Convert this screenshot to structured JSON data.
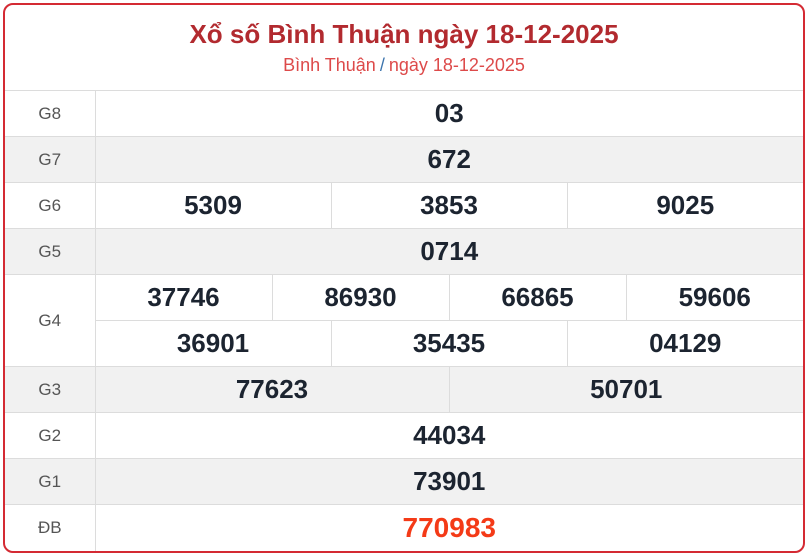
{
  "header": {
    "title": "Xổ số Bình Thuận ngày 18-12-2025",
    "breadcrumb_province": "Bình Thuận",
    "breadcrumb_separator": "/",
    "breadcrumb_date": "ngày 18-12-2025"
  },
  "colors": {
    "accent-red": "#d42a33",
    "title-red": "#b22a2f",
    "subtitle-red": "#dd4a4a",
    "slash-blue": "#3c74ad",
    "special-red": "#f43a17",
    "number-dark": "#1c2430",
    "stripe-gray": "#f1f1f1"
  },
  "results": {
    "rows": [
      {
        "label": "G8",
        "cells": [
          "03"
        ]
      },
      {
        "label": "G7",
        "cells": [
          "672"
        ]
      },
      {
        "label": "G6",
        "cells": [
          "5309",
          "3853",
          "9025"
        ]
      },
      {
        "label": "G5",
        "cells": [
          "0714"
        ]
      },
      {
        "label": "G4",
        "cells": [
          "37746",
          "86930",
          "66865",
          "59606"
        ],
        "cells2": [
          "36901",
          "35435",
          "04129"
        ]
      },
      {
        "label": "G3",
        "cells": [
          "77623",
          "50701"
        ]
      },
      {
        "label": "G2",
        "cells": [
          "44034"
        ]
      },
      {
        "label": "G1",
        "cells": [
          "73901"
        ]
      },
      {
        "label": "ĐB",
        "cells": [
          "770983"
        ],
        "special": true
      }
    ]
  }
}
